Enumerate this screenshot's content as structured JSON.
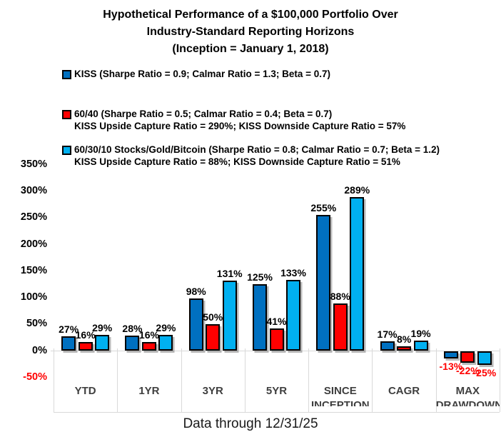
{
  "header": {
    "title_lines": [
      "Hypothetical Performance of a $100,000 Portfolio Over",
      "Industry-Standard Reporting Horizons",
      "(Inception = January 1, 2018)"
    ]
  },
  "legend": {
    "items": [
      {
        "label": "KISS (Sharpe Ratio = 0.9; Calmar Ratio = 1.3; Beta = 0.7)",
        "sublabel": "",
        "color": "#0070C0"
      },
      {
        "label": "60/40 (Sharpe Ratio = 0.5; Calmar Ratio = 0.4; Beta = 0.7)",
        "sublabel": "KISS Upside Capture Ratio = 290%; KISS Downside Capture Ratio = 57%",
        "color": "#FF0000"
      },
      {
        "label": "60/30/10 Stocks/Gold/Bitcoin (Sharpe Ratio = 0.8; Calmar Ratio = 0.7; Beta = 1.2)",
        "sublabel": "KISS Upside Capture Ratio = 88%; KISS Downside Capture Ratio = 51%",
        "color": "#00B0F0"
      }
    ]
  },
  "chart_data": {
    "type": "bar",
    "title": "Hypothetical Performance of a $100,000 Portfolio Over Industry-Standard Reporting Horizons (Inception = January 1, 2018)",
    "categories": [
      "YTD",
      "1YR",
      "3YR",
      "5YR",
      "SINCE INCEPTION",
      "CAGR",
      "MAX DRAWDOWN"
    ],
    "series": [
      {
        "name": "KISS",
        "color": "#0070C0",
        "values": [
          27,
          28,
          98,
          125,
          255,
          17,
          -13
        ]
      },
      {
        "name": "60/40",
        "color": "#FF0000",
        "values": [
          16,
          16,
          50,
          41,
          88,
          8,
          -22
        ]
      },
      {
        "name": "60/30/10 Stocks/Gold/Bitcoin",
        "color": "#00B0F0",
        "values": [
          29,
          29,
          131,
          133,
          289,
          19,
          -25
        ]
      }
    ],
    "ylim": [
      -50,
      350
    ],
    "ytick_step": 50,
    "yticks": [
      "350%",
      "300%",
      "250%",
      "200%",
      "150%",
      "100%",
      "50%",
      "0%",
      "-50%"
    ],
    "grid": false,
    "legend_position": "top-left",
    "bar_label_format": "{v}%",
    "negative_label_color": "#FF0000",
    "axis_line_color": "#D9D9D9"
  },
  "footer": {
    "caption": "Data through 12/31/25"
  }
}
